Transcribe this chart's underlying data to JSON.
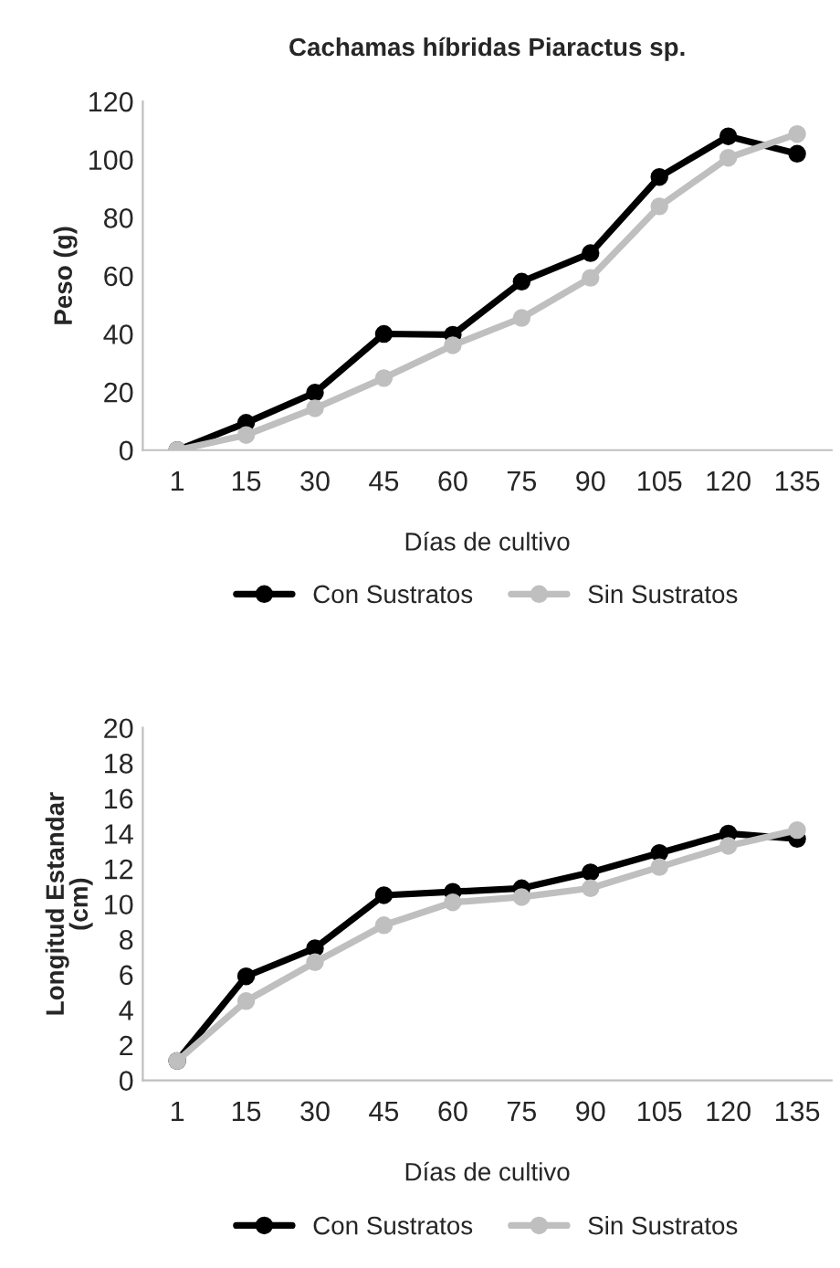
{
  "chart_data": [
    {
      "type": "line",
      "title": "Cachamas híbridas Piaractus sp.",
      "xlabel": "Días de cultivo",
      "ylabel": "Peso (g)",
      "categories": [
        "1",
        "15",
        "30",
        "45",
        "60",
        "75",
        "90",
        "105",
        "120",
        "135"
      ],
      "series": [
        {
          "name": "Con Sustratos",
          "color": "#000000",
          "values": [
            0,
            9.4,
            19.8,
            40,
            39.7,
            58,
            67.8,
            94,
            108,
            102
          ]
        },
        {
          "name": "Sin Sustratos",
          "color": "#bfbfbf",
          "values": [
            0,
            5.2,
            14.4,
            24.8,
            36.1,
            45.5,
            59.3,
            83.9,
            100.6,
            108.8
          ]
        }
      ],
      "ylim": [
        0,
        120
      ],
      "yticks": [
        0,
        20,
        40,
        60,
        80,
        100,
        120
      ],
      "grid": false,
      "legend": "bottom",
      "marker": "circle",
      "line_style": "solid"
    },
    {
      "type": "line",
      "xlabel": "Días de cultivo",
      "ylabel": "Longitud Estandar\n(cm)",
      "categories": [
        "1",
        "15",
        "30",
        "45",
        "60",
        "75",
        "90",
        "105",
        "120",
        "135"
      ],
      "series": [
        {
          "name": "Con Sustratos",
          "color": "#000000",
          "values": [
            1.1,
            5.9,
            7.5,
            10.5,
            10.7,
            10.9,
            11.8,
            12.9,
            14.0,
            13.7
          ]
        },
        {
          "name": "Sin Sustratos",
          "color": "#bfbfbf",
          "values": [
            1.1,
            4.5,
            6.7,
            8.8,
            10.1,
            10.4,
            10.9,
            12.1,
            13.3,
            14.2
          ]
        }
      ],
      "ylim": [
        0,
        20
      ],
      "yticks": [
        0,
        2,
        4,
        6,
        8,
        10,
        12,
        14,
        16,
        18,
        20
      ],
      "grid": false,
      "legend": "bottom",
      "marker": "circle",
      "line_style": "solid"
    }
  ]
}
